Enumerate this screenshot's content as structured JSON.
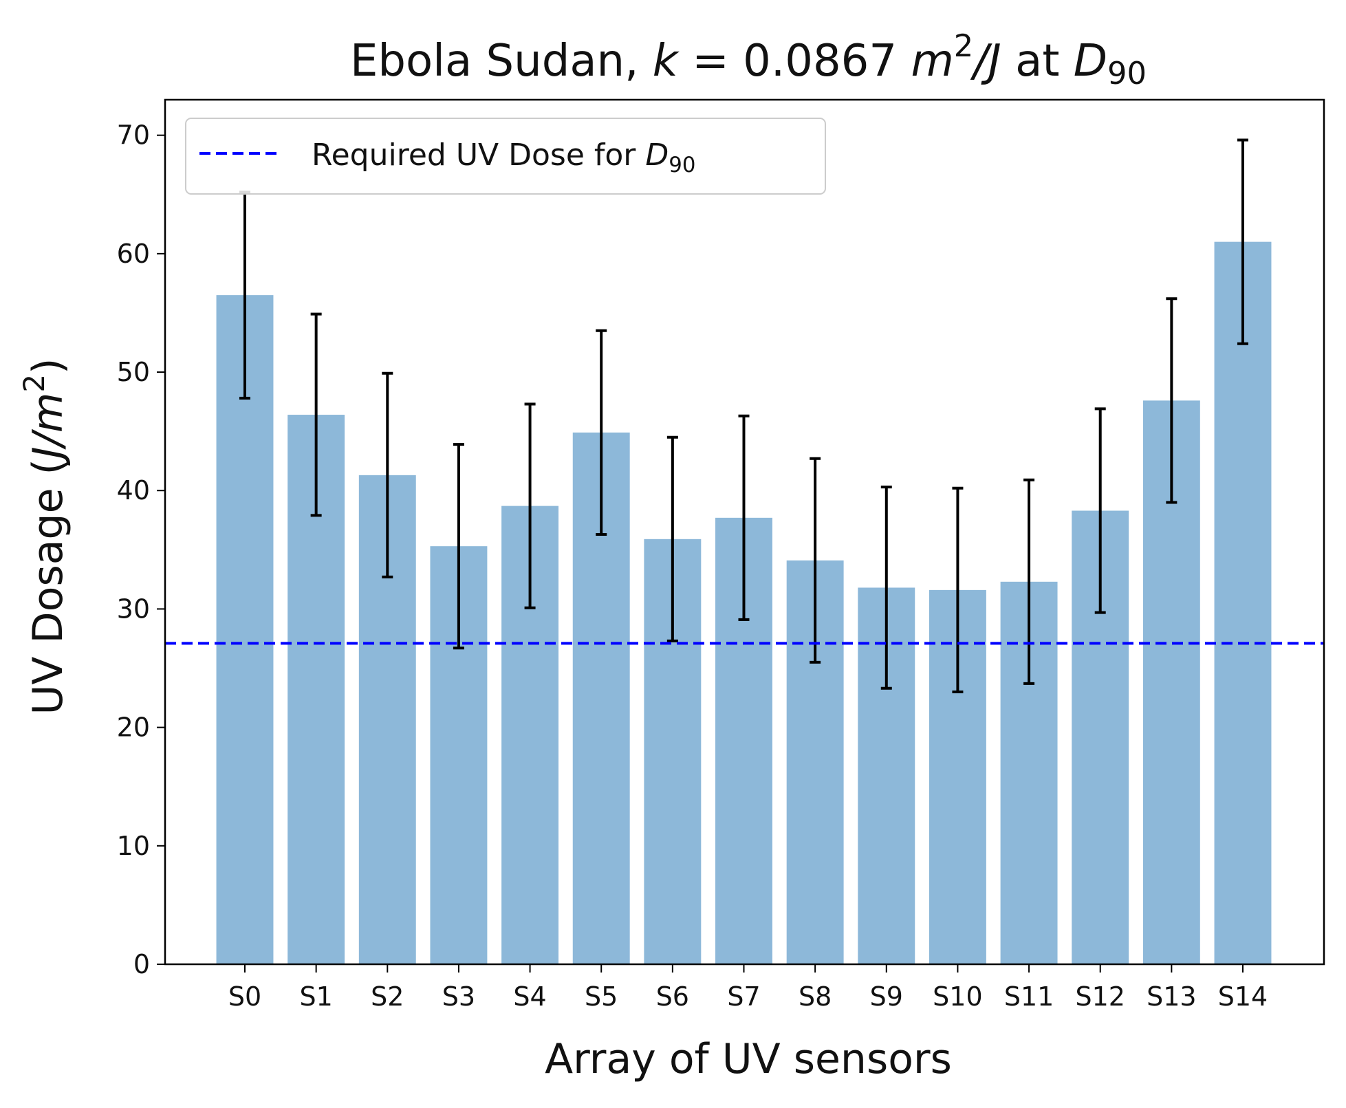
{
  "chart_data": {
    "type": "bar",
    "title": {
      "prefix": "Ebola Sudan, ",
      "k_symbol": "k",
      "eq": " = 0.0867 ",
      "unit_m": "m",
      "unit_exp": "2",
      "unit_rest": "/J",
      "at": " at ",
      "d_symbol": "D",
      "d_sub": "90"
    },
    "xlabel": "Array of UV sensors",
    "ylabel": {
      "prefix": "UV Dosage (",
      "italic": "J/m",
      "exp": "2",
      "suffix": ")"
    },
    "ylim": [
      0,
      73
    ],
    "yticks": [
      0,
      10,
      20,
      30,
      40,
      50,
      60,
      70
    ],
    "categories": [
      "S0",
      "S1",
      "S2",
      "S3",
      "S4",
      "S5",
      "S6",
      "S7",
      "S8",
      "S9",
      "S10",
      "S11",
      "S12",
      "S13",
      "S14"
    ],
    "values": [
      56.5,
      46.4,
      41.3,
      35.3,
      38.7,
      44.9,
      35.9,
      37.7,
      34.1,
      31.8,
      31.6,
      32.3,
      38.3,
      47.6,
      61.0
    ],
    "errors": [
      8.7,
      8.5,
      8.6,
      8.6,
      8.6,
      8.6,
      8.6,
      8.6,
      8.6,
      8.5,
      8.6,
      8.6,
      8.6,
      8.6,
      8.6
    ],
    "bar_color": "#8db8d9",
    "error_color": "#000000",
    "reference_line": {
      "value": 27.1,
      "label_prefix": "Required UV Dose for ",
      "label_symbol": "D",
      "label_sub": "90",
      "color": "#0000ff",
      "style": "dashed"
    },
    "legend": "top-left",
    "grid": false
  }
}
